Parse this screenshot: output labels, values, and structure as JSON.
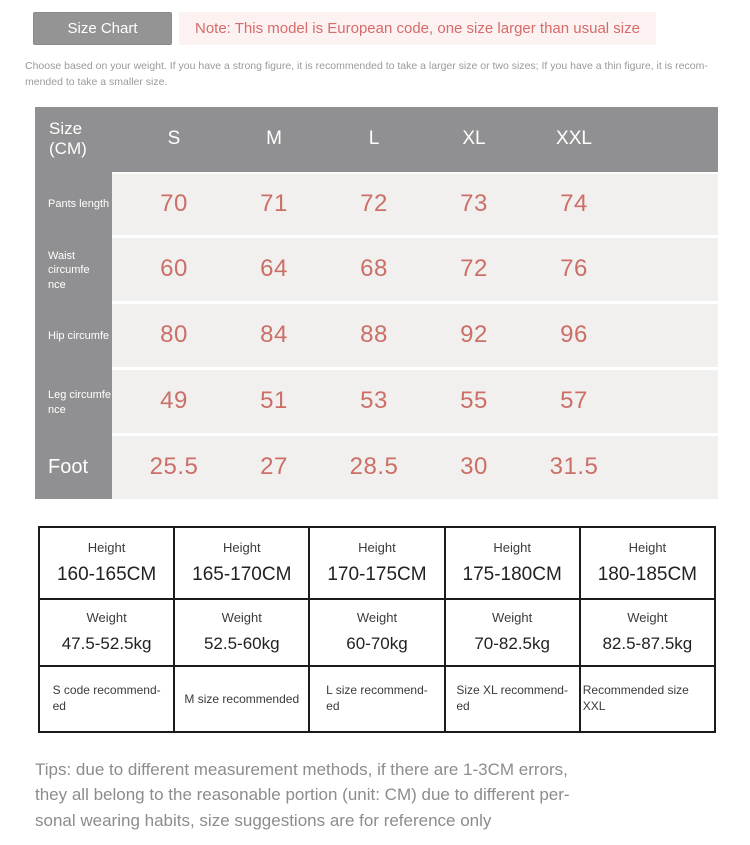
{
  "colors": {
    "accent_red": "#cb6f67",
    "note_text": "#d96a6a",
    "note_bg": "#fdf2f2",
    "header_gray": "#909092",
    "table_body_bg": "#f1f0ee",
    "button_gray": "#949494",
    "fit_table_border": "#1c1c1c"
  },
  "top": {
    "size_chart_button": "Size Chart",
    "note": "Note: This model is European code, one size larger than usual size",
    "intro": "Choose based on your weight. If you have a strong figure, it is recommended to take a larger size or two sizes; If you have a thin figure, it is recom-\nmended to take a smaller size."
  },
  "size_table": {
    "corner_label": "Size\n(CM)",
    "columns": [
      "S",
      "M",
      "L",
      "XL",
      "XXL"
    ],
    "rows": [
      {
        "label": "Pants length",
        "values": [
          "70",
          "71",
          "72",
          "73",
          "74"
        ]
      },
      {
        "label": "Waist circumfe\nnce",
        "values": [
          "60",
          "64",
          "68",
          "72",
          "76"
        ]
      },
      {
        "label": "Hip circumfe",
        "values": [
          "80",
          "84",
          "88",
          "92",
          "96"
        ]
      },
      {
        "label": "Leg circumfe\nnce",
        "values": [
          "49",
          "51",
          "53",
          "55",
          "57"
        ]
      },
      {
        "label": "Foot",
        "values": [
          "25.5",
          "27",
          "28.5",
          "30",
          "31.5"
        ]
      }
    ]
  },
  "fit_table": {
    "columns": [
      {
        "height_label": "Height",
        "height": "160-165CM",
        "weight_label": "Weight",
        "weight": "47.5-52.5kg",
        "recommend": "S code recommend-\ned"
      },
      {
        "height_label": "Height",
        "height": "165-170CM",
        "weight_label": "Weight",
        "weight": "52.5-60kg",
        "recommend": "M size recommended"
      },
      {
        "height_label": "Height",
        "height": "170-175CM",
        "weight_label": "Weight",
        "weight": "60-70kg",
        "recommend": "L size recommend-\ned"
      },
      {
        "height_label": "Height",
        "height": "175-180CM",
        "weight_label": "Weight",
        "weight": "70-82.5kg",
        "recommend": "Size XL recommend-\ned"
      },
      {
        "height_label": "Height",
        "height": "180-185CM",
        "weight_label": "Weight",
        "weight": "82.5-87.5kg",
        "recommend": "Recommended size XXL"
      }
    ]
  },
  "tips": "Tips: due to different measurement methods, if there are 1-3CM errors,\nthey all belong to the reasonable portion (unit: CM) due to different per-\nsonal wearing habits, size suggestions are for reference only"
}
